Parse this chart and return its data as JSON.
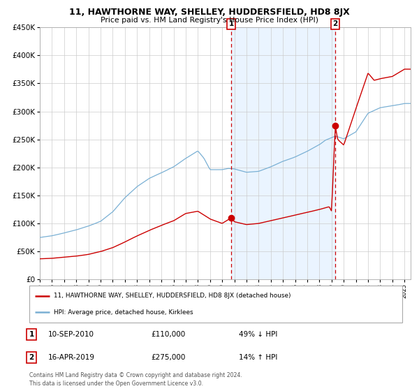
{
  "title": "11, HAWTHORNE WAY, SHELLEY, HUDDERSFIELD, HD8 8JX",
  "subtitle": "Price paid vs. HM Land Registry's House Price Index (HPI)",
  "legend_entry1": "11, HAWTHORNE WAY, SHELLEY, HUDDERSFIELD, HD8 8JX (detached house)",
  "legend_entry2": "HPI: Average price, detached house, Kirklees",
  "annotation1_date": "10-SEP-2010",
  "annotation1_price": "£110,000",
  "annotation1_hpi": "49% ↓ HPI",
  "annotation2_date": "16-APR-2019",
  "annotation2_price": "£275,000",
  "annotation2_hpi": "14% ↑ HPI",
  "footnote1": "Contains HM Land Registry data © Crown copyright and database right 2024.",
  "footnote2": "This data is licensed under the Open Government Licence v3.0.",
  "hpi_color": "#7ab0d4",
  "price_color": "#cc0000",
  "bg_shaded": "#ddeeff",
  "vline_color": "#cc0000",
  "grid_color": "#cccccc",
  "box_color": "#cc0000",
  "ylim": [
    0,
    450000
  ],
  "xlim_start": 1995,
  "xlim_end": 2025.5,
  "sale1_x": 2010.75,
  "sale1_y": 110000,
  "sale2_x": 2019.3,
  "sale2_y": 275000,
  "hpi_key": [
    [
      1995,
      75000
    ],
    [
      1996,
      78000
    ],
    [
      1997,
      83000
    ],
    [
      1998,
      88000
    ],
    [
      1999,
      95000
    ],
    [
      2000,
      103000
    ],
    [
      2001,
      120000
    ],
    [
      2002,
      145000
    ],
    [
      2003,
      165000
    ],
    [
      2004,
      180000
    ],
    [
      2005,
      190000
    ],
    [
      2006,
      200000
    ],
    [
      2007,
      215000
    ],
    [
      2008,
      228000
    ],
    [
      2008.5,
      215000
    ],
    [
      2009,
      195000
    ],
    [
      2010,
      195000
    ],
    [
      2010.5,
      197000
    ],
    [
      2011,
      196000
    ],
    [
      2012,
      190000
    ],
    [
      2013,
      192000
    ],
    [
      2014,
      200000
    ],
    [
      2015,
      210000
    ],
    [
      2016,
      218000
    ],
    [
      2017,
      228000
    ],
    [
      2018,
      240000
    ],
    [
      2018.5,
      248000
    ],
    [
      2019,
      252000
    ],
    [
      2019.3,
      255000
    ],
    [
      2020,
      250000
    ],
    [
      2021,
      262000
    ],
    [
      2022,
      295000
    ],
    [
      2023,
      305000
    ],
    [
      2024,
      308000
    ],
    [
      2025,
      312000
    ]
  ],
  "price_key": [
    [
      1995,
      37000
    ],
    [
      1996,
      38000
    ],
    [
      1997,
      40000
    ],
    [
      1998,
      42000
    ],
    [
      1999,
      45000
    ],
    [
      2000,
      50000
    ],
    [
      2001,
      57000
    ],
    [
      2002,
      67000
    ],
    [
      2003,
      78000
    ],
    [
      2004,
      88000
    ],
    [
      2005,
      97000
    ],
    [
      2006,
      105000
    ],
    [
      2007,
      118000
    ],
    [
      2008,
      122000
    ],
    [
      2009,
      108000
    ],
    [
      2010,
      100000
    ],
    [
      2010.75,
      110000
    ],
    [
      2011,
      103000
    ],
    [
      2012,
      98000
    ],
    [
      2013,
      100000
    ],
    [
      2014,
      105000
    ],
    [
      2015,
      110000
    ],
    [
      2016,
      115000
    ],
    [
      2017,
      120000
    ],
    [
      2018,
      125000
    ],
    [
      2018.8,
      130000
    ],
    [
      2019.0,
      122000
    ],
    [
      2019.3,
      275000
    ],
    [
      2019.5,
      250000
    ],
    [
      2020,
      240000
    ],
    [
      2021,
      305000
    ],
    [
      2022,
      368000
    ],
    [
      2022.5,
      355000
    ],
    [
      2023,
      358000
    ],
    [
      2024,
      362000
    ],
    [
      2025,
      375000
    ]
  ]
}
